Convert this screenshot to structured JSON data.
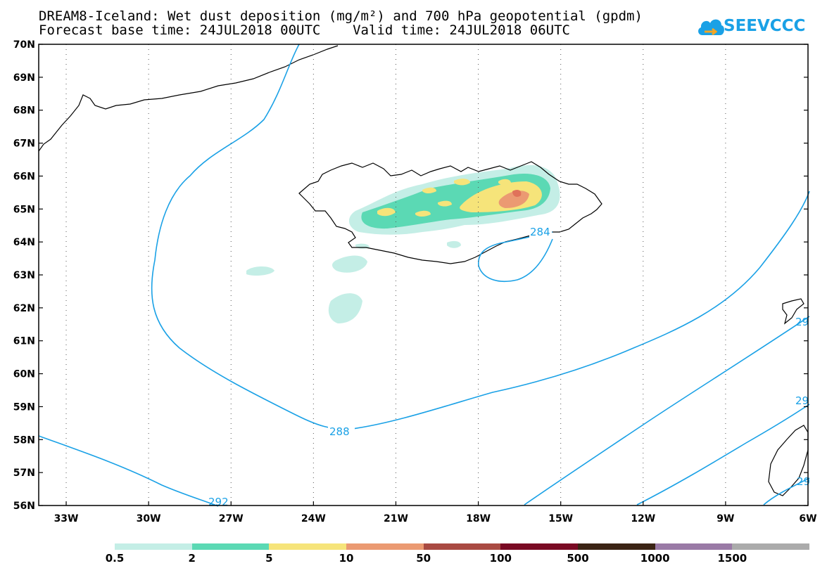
{
  "title_line1": "DREAM8-Iceland: Wet dust deposition (mg/m²) and 700 hPa geopotential (gpdm)",
  "title_line2": "Forecast base time: 24JUL2018 00UTC    Valid time: 24JUL2018 06UTC",
  "logo_text": "SEEVCCC",
  "map": {
    "lon_range": [
      -34.0,
      -6.0
    ],
    "lat_range": [
      56,
      70
    ],
    "lat_labels": [
      "70N",
      "69N",
      "68N",
      "67N",
      "66N",
      "65N",
      "64N",
      "63N",
      "62N",
      "61N",
      "60N",
      "59N",
      "58N",
      "57N",
      "56N"
    ],
    "lon_labels": [
      "33W",
      "30W",
      "27W",
      "24W",
      "21W",
      "18W",
      "15W",
      "12W",
      "9W",
      "6W"
    ],
    "contour_labels": [
      "288",
      "284",
      "292",
      "29",
      "29",
      "29"
    ]
  },
  "legend": {
    "labels": [
      "0.5",
      "2",
      "5",
      "10",
      "50",
      "100",
      "500",
      "1000",
      "1500"
    ],
    "colors": [
      "#c4eee6",
      "#5bd9b4",
      "#f6e47a",
      "#eb9a72",
      "#a94a42",
      "#7a0a24",
      "#3b2415",
      "#9a7aa6",
      "#ababab"
    ]
  }
}
